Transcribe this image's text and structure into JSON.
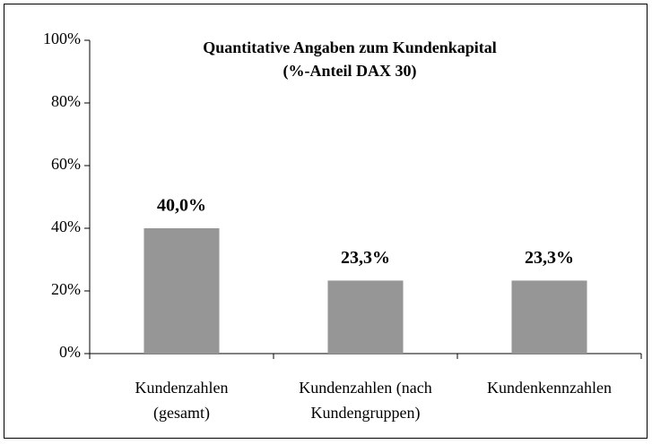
{
  "chart_data": {
    "type": "bar",
    "title": [
      "Quantitative Angaben zum Kundenkapital",
      "(%-Anteil DAX 30)"
    ],
    "categories": [
      [
        "Kundenzahlen",
        "(gesamt)"
      ],
      [
        "Kundenzahlen (nach",
        "Kundengruppen)"
      ],
      [
        "Kundenkennzahlen"
      ]
    ],
    "values": [
      40,
      23.3,
      23.3
    ],
    "value_labels": [
      "40,0%",
      "23,3%",
      "23,3%"
    ],
    "color": "#969696",
    "ylim": [
      0,
      100
    ],
    "yticks": [
      {
        "value": 0,
        "label": "0%"
      },
      {
        "value": 20,
        "label": "20%"
      },
      {
        "value": 40,
        "label": "40%"
      },
      {
        "value": 60,
        "label": "60%"
      },
      {
        "value": 80,
        "label": "80%"
      },
      {
        "value": 100,
        "label": "100%"
      }
    ],
    "grid": false
  }
}
